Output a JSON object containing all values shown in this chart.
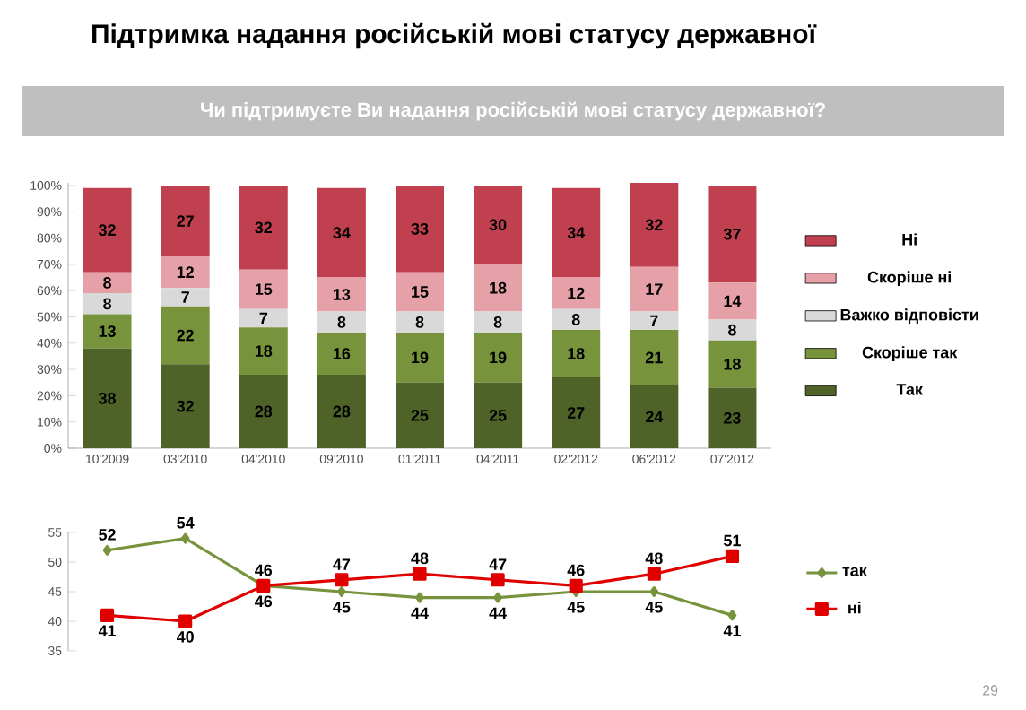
{
  "chart_data": [
    {
      "type": "bar",
      "title": "Підтримка надання російській мові статусу державної",
      "subtitle": "Чи підтримуєте Ви надання російській мові статусу державної?",
      "stacked": true,
      "data_labels": true,
      "legend": "right",
      "categories": [
        "10'2009",
        "03'2010",
        "04'2010",
        "09'2010",
        "01'2011",
        "04'2011",
        "02'2012",
        "06'2012",
        "07'2012"
      ],
      "ylim": [
        0,
        101
      ],
      "yticks": [
        {
          "value": 0,
          "label": "0%"
        },
        {
          "value": 10,
          "label": "10%"
        },
        {
          "value": 20,
          "label": "20%"
        },
        {
          "value": 30,
          "label": "30%"
        },
        {
          "value": 40,
          "label": "40%"
        },
        {
          "value": 50,
          "label": "50%"
        },
        {
          "value": 60,
          "label": "60%"
        },
        {
          "value": 70,
          "label": "70%"
        },
        {
          "value": 80,
          "label": "80%"
        },
        {
          "value": 90,
          "label": "90%"
        },
        {
          "value": 100,
          "label": "100%"
        }
      ],
      "series": [
        {
          "name": "Так",
          "color": "#4f6228",
          "values": [
            38,
            32,
            28,
            28,
            25,
            25,
            27,
            24,
            23
          ]
        },
        {
          "name": "Скоріше так",
          "color": "#77933c",
          "values": [
            13,
            22,
            18,
            16,
            19,
            19,
            18,
            21,
            18
          ]
        },
        {
          "name": "Важко відповісти",
          "color": "#d9d9d9",
          "values": [
            8,
            7,
            7,
            8,
            8,
            8,
            8,
            7,
            8
          ]
        },
        {
          "name": "Скоріше ні",
          "color": "#e6a0a8",
          "values": [
            8,
            12,
            15,
            13,
            15,
            18,
            12,
            17,
            14
          ]
        },
        {
          "name": "Ні",
          "color": "#c0404f",
          "values": [
            32,
            27,
            32,
            34,
            33,
            30,
            34,
            32,
            37
          ]
        }
      ]
    },
    {
      "type": "line",
      "data_labels": true,
      "legend": "right",
      "tick_labels": "y",
      "categories": [
        null,
        null,
        null,
        null,
        null,
        null,
        null,
        null,
        null
      ],
      "ylim": [
        35,
        55
      ],
      "yticks": [
        35,
        40,
        45,
        50,
        55
      ],
      "annotations": [
        "29"
      ],
      "series": [
        {
          "name": "так",
          "color": "#77933c",
          "marker": "diamond",
          "values": [
            52,
            54,
            46,
            45,
            44,
            44,
            45,
            45,
            41
          ]
        },
        {
          "name": "ні",
          "color": "#e00000",
          "marker": "square",
          "values": [
            41,
            40,
            46,
            47,
            48,
            47,
            46,
            48,
            51
          ]
        }
      ]
    }
  ]
}
